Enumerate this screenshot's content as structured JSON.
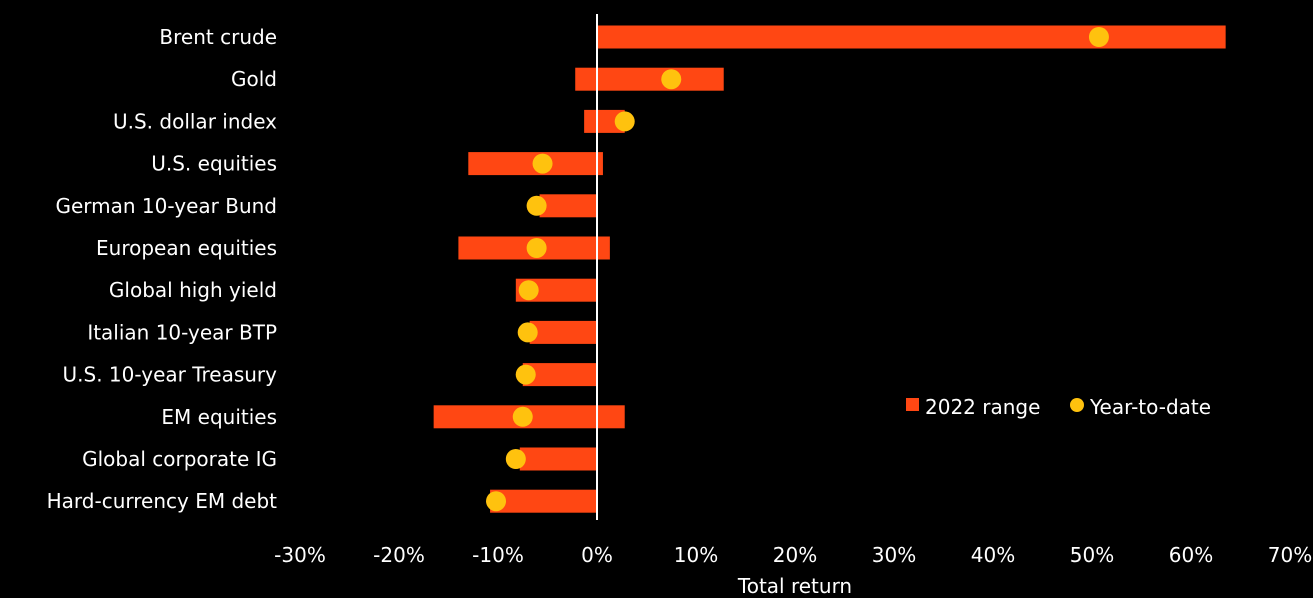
{
  "chart_data": {
    "type": "bar",
    "orientation": "horizontal",
    "categories": [
      "Brent crude",
      "Gold",
      "U.S. dollar index",
      "U.S. equities",
      "German 10-year Bund",
      "European equities",
      "Global high yield",
      "Italian 10-year BTP",
      "U.S. 10-year Treasury",
      "EM equities",
      "Global corporate IG",
      "Hard-currency EM debt"
    ],
    "series": [
      {
        "name": "2022 range",
        "type": "range",
        "color": "#ff4713",
        "low": [
          0,
          -2.2,
          -1.3,
          -13.0,
          -5.8,
          -14.0,
          -8.2,
          -6.8,
          -7.5,
          -16.5,
          -7.8,
          -10.8
        ],
        "high": [
          63.5,
          12.8,
          2.8,
          0.6,
          0,
          1.3,
          0,
          0,
          0,
          2.8,
          0,
          0
        ]
      },
      {
        "name": "Year-to-date",
        "type": "point",
        "color": "#ffc20e",
        "values": [
          50.7,
          7.5,
          2.8,
          -5.5,
          -6.1,
          -6.1,
          -6.9,
          -7.0,
          -7.2,
          -7.5,
          -8.2,
          -10.2
        ]
      }
    ],
    "x_ticks": [
      "-30%",
      "-20%",
      "-10%",
      "0%",
      "10%",
      "20%",
      "30%",
      "40%",
      "50%",
      "60%",
      "70%"
    ],
    "xlim": [
      -30,
      70
    ],
    "xlabel": "Total return",
    "ylabel": "",
    "title": "",
    "grid": false,
    "legend": "right",
    "background": "#000000",
    "zero_line_color": "#ffffff"
  }
}
